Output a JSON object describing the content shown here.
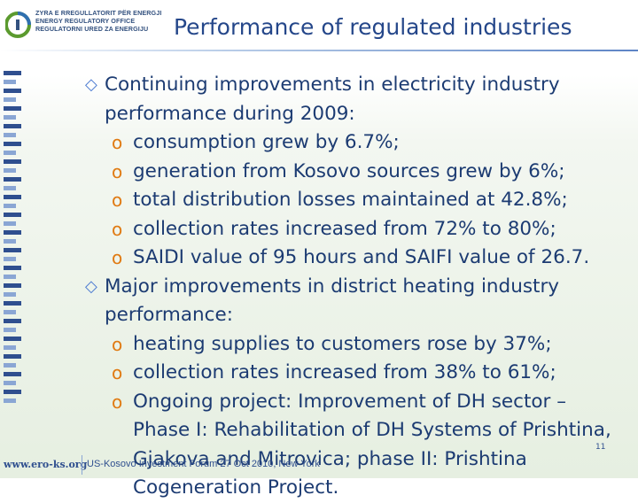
{
  "header": {
    "logo_lines": [
      "ZYRA E RREGULLATORIT PËR ENERGJI",
      "ENERGY REGULATORY OFFICE",
      "REGULATORNI URED ZA ENERGIJU"
    ],
    "title": "Performance of regulated industries"
  },
  "bullets": [
    {
      "text": "Continuing improvements in electricity industry performance during 2009:",
      "subs": [
        "consumption grew by 6.7%;",
        "generation from Kosovo sources grew by 6%;",
        "total distribution losses maintained at 42.8%;",
        "collection rates increased from 72% to 80%;",
        "SAIDI value of 95 hours and SAIFI value of 26.7."
      ]
    },
    {
      "text": "Major improvements in district heating industry performance:",
      "subs": [
        "heating supplies to customers rose by 37%;",
        "collection rates increased from 38% to 61%;",
        "Ongoing project: Improvement of DH sector – Phase I: Rehabilitation of DH Systems of Prishtina, Gjakova and Mitrovica; phase II: Prishtina Cogeneration Project."
      ]
    }
  ],
  "footer": {
    "url": "www.ero-ks.org",
    "text": "US-Kosovo Investment Forum 27 Oct 2010, New York",
    "page": "11"
  },
  "colors": {
    "title": "#25478a",
    "body_text": "#1c3b72",
    "sub_bullet": "#e07a12",
    "main_bullet": "#4c7bd1"
  }
}
